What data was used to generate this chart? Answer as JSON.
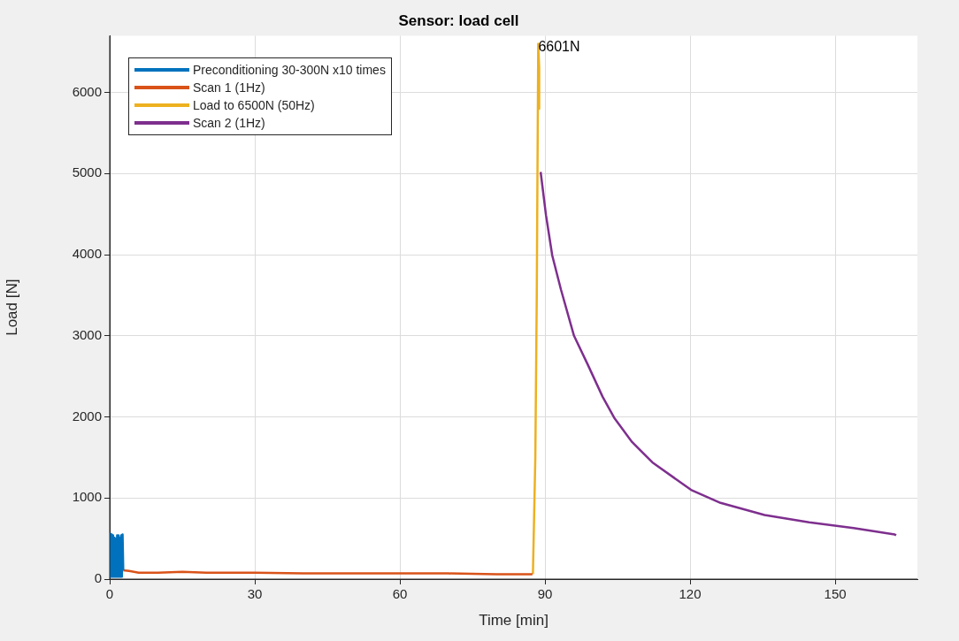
{
  "chart_data": {
    "type": "line",
    "title": "Sensor: load cell",
    "xlabel": "Time [min]",
    "ylabel": "Load [N]",
    "xlim": [
      0,
      167
    ],
    "xticks": [
      0,
      30,
      60,
      90,
      120,
      150
    ],
    "ylim": [
      0,
      6700
    ],
    "yticks": [
      0,
      1000,
      2000,
      3000,
      4000,
      5000,
      6000
    ],
    "grid": true,
    "legend": "top left",
    "marker": "none",
    "line_style": "solid",
    "annotations": [
      {
        "text": "6601N",
        "x": 88.6,
        "y": 6601
      }
    ],
    "series": [
      {
        "name": "Preconditioning 30-300N x10 times",
        "color": "#0072bd",
        "x": [
          0,
          0.14,
          0.28,
          0.42,
          0.56,
          0.7,
          0.84,
          0.98,
          1.12,
          1.26,
          1.4,
          1.54,
          1.68,
          1.82,
          1.96,
          2.1,
          2.24,
          2.38,
          2.52,
          2.66,
          2.8
        ],
        "values": [
          30,
          560,
          30,
          550,
          30,
          540,
          30,
          510,
          30,
          500,
          30,
          540,
          30,
          540,
          30,
          510,
          30,
          540,
          30,
          550,
          110
        ]
      },
      {
        "name": "Scan 1 (1Hz)",
        "color": "#d95319",
        "x": [
          2.8,
          4,
          6,
          10,
          15,
          20,
          30,
          40,
          50,
          60,
          70,
          80,
          87.4
        ],
        "values": [
          110,
          100,
          80,
          80,
          90,
          80,
          80,
          70,
          70,
          70,
          70,
          60,
          60
        ]
      },
      {
        "name": "Load to 6500N (50Hz)",
        "color": "#edb120",
        "x": [
          87.5,
          88.0,
          88.3,
          88.6,
          88.8,
          88.8
        ],
        "values": [
          60,
          1500,
          3500,
          6601,
          6300,
          5800
        ]
      },
      {
        "name": "Scan 2 (1Hz)",
        "color": "#7e2f8e",
        "x": [
          89.1,
          90.2,
          91.5,
          93.3,
          96.0,
          98.8,
          101.9,
          104.3,
          108.0,
          112.2,
          120.2,
          126.3,
          135.4,
          144.6,
          153.8,
          162.3,
          162.6
        ],
        "values": [
          5020,
          4490,
          3990,
          3570,
          3000,
          2650,
          2250,
          1990,
          1690,
          1440,
          1100,
          940,
          790,
          700,
          630,
          550,
          540
        ]
      }
    ]
  }
}
